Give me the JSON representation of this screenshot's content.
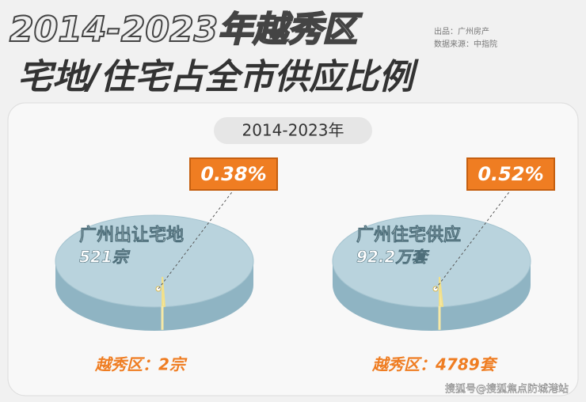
{
  "title_line1": "2014-2023年越秀区",
  "title_line2": "宅地/住宅占全市供应比例",
  "source_lines": [
    "出品：广州房产",
    "数据来源：中指院"
  ],
  "period": "2014-2023年",
  "chart_data": [
    {
      "type": "pie",
      "label": "广州出让宅地",
      "total": "521宗",
      "values": [
        0.38
      ],
      "value_labels": [
        "0.38%"
      ],
      "subset": "越秀区：2宗"
    },
    {
      "type": "pie",
      "label": "广州住宅供应",
      "total": "92.2万套",
      "values": [
        0.52
      ],
      "value_labels": [
        "0.52%"
      ],
      "subset": "越秀区：4789套"
    }
  ],
  "watermark": "搜狐号@搜狐焦点防城港站"
}
